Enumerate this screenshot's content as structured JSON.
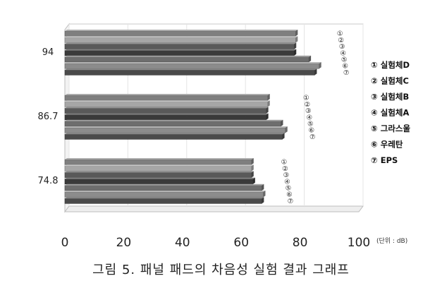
{
  "chart_data": {
    "type": "bar",
    "orientation": "horizontal",
    "style": "3d",
    "categories": [
      "94",
      "86.7",
      "74.8"
    ],
    "series": [
      {
        "name": "① 실험체D",
        "marker": "①",
        "values": [
          78.5,
          69,
          63.5
        ],
        "color": "#7f7f7f"
      },
      {
        "name": "② 실험체C",
        "marker": "②",
        "values": [
          78.5,
          69,
          63.5
        ],
        "color": "#a6a6a6"
      },
      {
        "name": "③ 실험체B",
        "marker": "③",
        "values": [
          78,
          68.5,
          63.5
        ],
        "color": "#595959"
      },
      {
        "name": "④ 실험체A",
        "marker": "④",
        "values": [
          78,
          68.5,
          64
        ],
        "color": "#3a3a3a"
      },
      {
        "name": "⑤ 그라스울",
        "marker": "⑤",
        "values": [
          83,
          73.5,
          67
        ],
        "color": "#6e6e6e"
      },
      {
        "name": "⑥ 우레탄",
        "marker": "⑥",
        "values": [
          86.5,
          75,
          67.5
        ],
        "color": "#8c8c8c"
      },
      {
        "name": "⑦ EPS",
        "marker": "⑦",
        "values": [
          85,
          74,
          67
        ],
        "color": "#4a4a4a"
      }
    ],
    "xlim": [
      0,
      100
    ],
    "xticks": [
      "0",
      "20",
      "40",
      "60",
      "80",
      "100"
    ],
    "unit_label": "(단위 : dB)",
    "legend": {
      "position": "right"
    }
  },
  "caption": "그림 5. 패널 패드의 차음성 실험 결과 그래프"
}
